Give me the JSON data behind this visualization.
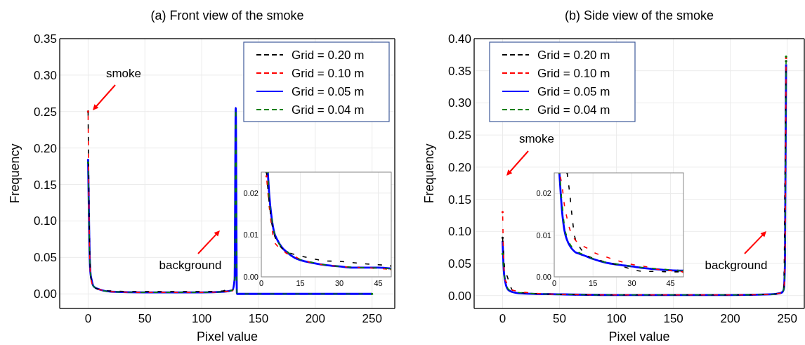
{
  "chart_data": [
    {
      "type": "line",
      "title": "(a) Front view of the smoke",
      "xlabel": "Pixel value",
      "ylabel": "Frequency",
      "xlim": [
        -25,
        270
      ],
      "ylim": [
        -0.02,
        0.35
      ],
      "xticks": [
        0,
        50,
        100,
        150,
        200,
        250
      ],
      "yticks": [
        {
          "value": 0,
          "label": "0.00"
        },
        {
          "value": 0.05,
          "label": "0.05"
        },
        {
          "value": 0.1,
          "label": "0.10"
        },
        {
          "value": 0.15,
          "label": "0.15"
        },
        {
          "value": 0.2,
          "label": "0.20"
        },
        {
          "value": 0.25,
          "label": "0.25"
        },
        {
          "value": 0.3,
          "label": "0.30"
        },
        {
          "value": 0.35,
          "label": "0.35"
        }
      ],
      "grid": true,
      "legend": "top right",
      "annotations": [
        "smoke",
        "background"
      ],
      "x": [
        0,
        1,
        2,
        3,
        5,
        10,
        20,
        50,
        100,
        120,
        127,
        129,
        130,
        131,
        250
      ],
      "series": [
        {
          "name": "Grid = 0.20 m",
          "color": "#000000",
          "line_style": "dashed",
          "values": [
            0.25,
            0.1,
            0.03,
            0.018,
            0.01,
            0.006,
            0.004,
            0.003,
            0.003,
            0.004,
            null,
            null,
            null,
            null,
            null
          ]
        },
        {
          "name": "Grid = 0.10 m",
          "color": "#ff0000",
          "line_style": "dashed",
          "values": [
            0.25,
            0.09,
            0.028,
            0.017,
            0.009,
            0.006,
            0.003,
            0.002,
            0.002,
            0.003,
            0.005,
            null,
            null,
            null,
            null
          ]
        },
        {
          "name": "Grid = 0.05 m",
          "color": "#0000ff",
          "line_style": "solid",
          "values": [
            0.185,
            0.08,
            0.03,
            0.02,
            0.01,
            0.006,
            0.003,
            0.002,
            0.002,
            0.003,
            0.005,
            0.02,
            0.255,
            0,
            0
          ]
        },
        {
          "name": "Grid = 0.04 m",
          "color": "#008000",
          "line_style": "dashed",
          "values": [
            0.18,
            0.08,
            0.03,
            0.019,
            0.01,
            0.006,
            0.003,
            0.002,
            0.002,
            0.003,
            0.005,
            0.02,
            0.255,
            0,
            0
          ]
        }
      ]
    },
    {
      "type": "line",
      "xlim": [
        0,
        50
      ],
      "ylim": [
        0,
        0.025
      ],
      "xticks": [
        0,
        15,
        30,
        45
      ],
      "yticks": [
        {
          "value": 0,
          "label": "0.00"
        },
        {
          "value": 0.01,
          "label": "0.01"
        },
        {
          "value": 0.02,
          "label": "0.02"
        }
      ],
      "grid": true,
      "series": [
        {
          "color": "#000000",
          "line_style": "dashed",
          "x": [
            2,
            3,
            4,
            5,
            6,
            8,
            10,
            13,
            15,
            20,
            25,
            30,
            35,
            40,
            45,
            50
          ],
          "values": [
            0.025,
            0.018,
            0.013,
            0.01,
            0.0085,
            0.0068,
            0.006,
            0.0053,
            0.005,
            0.0043,
            0.0038,
            0.0037,
            0.0034,
            0.0031,
            0.0029,
            0.0026
          ]
        },
        {
          "color": "#ff0000",
          "line_style": "dashed",
          "x": [
            2,
            3,
            4,
            5,
            6,
            8,
            10,
            13,
            15,
            20,
            25,
            30,
            35,
            40,
            45,
            50
          ],
          "values": [
            0.024,
            0.017,
            0.012,
            0.0085,
            0.0075,
            0.0065,
            0.0055,
            0.0048,
            0.0042,
            0.0033,
            0.0028,
            0.0025,
            0.0023,
            0.0022,
            0.002,
            0.0018
          ]
        },
        {
          "color": "#0000ff",
          "line_style": "solid",
          "x": [
            2.5,
            3,
            4,
            5,
            6,
            8,
            10,
            13,
            15,
            20,
            25,
            30,
            35,
            40,
            45,
            50
          ],
          "values": [
            0.025,
            0.02,
            0.014,
            0.0105,
            0.009,
            0.007,
            0.0058,
            0.0045,
            0.004,
            0.0033,
            0.0028,
            0.0025,
            0.0022,
            0.0022,
            0.0022,
            0.002
          ]
        },
        {
          "color": "#008000",
          "line_style": "dashed",
          "x": [
            2.5,
            3,
            4,
            5,
            6,
            8,
            10,
            13,
            15,
            20,
            25,
            30,
            35,
            40,
            45,
            50
          ],
          "values": [
            0.025,
            0.019,
            0.014,
            0.0105,
            0.0088,
            0.007,
            0.006,
            0.0047,
            0.0041,
            0.0034,
            0.0028,
            0.0025,
            0.0023,
            0.0022,
            0.0021,
            0.0019
          ]
        }
      ]
    },
    {
      "type": "line",
      "title": "(b) Side view of the smoke",
      "xlabel": "Pixel value",
      "ylabel": "Frequency",
      "xlim": [
        -25,
        265
      ],
      "ylim": [
        -0.02,
        0.4
      ],
      "xticks": [
        0,
        50,
        100,
        150,
        200,
        250
      ],
      "yticks": [
        {
          "value": 0,
          "label": "0.00"
        },
        {
          "value": 0.05,
          "label": "0.05"
        },
        {
          "value": 0.1,
          "label": "0.10"
        },
        {
          "value": 0.15,
          "label": "0.15"
        },
        {
          "value": 0.2,
          "label": "0.20"
        },
        {
          "value": 0.25,
          "label": "0.25"
        },
        {
          "value": 0.3,
          "label": "0.30"
        },
        {
          "value": 0.35,
          "label": "0.35"
        },
        {
          "value": 0.4,
          "label": "0.40"
        }
      ],
      "grid": true,
      "legend": "top left",
      "annotations": [
        "smoke",
        "background"
      ],
      "x": [
        0,
        1,
        2,
        3,
        5,
        8,
        10,
        20,
        50,
        100,
        150,
        200,
        235,
        244,
        246,
        247,
        248,
        249
      ],
      "series": [
        {
          "name": "Grid = 0.20 m",
          "color": "#000000",
          "line_style": "dashed",
          "values": [
            0.09,
            0.06,
            0.04,
            0.035,
            0.025,
            0.01,
            0.007,
            0.004,
            0.002,
            0.001,
            0.001,
            0.001,
            0.002,
            0.004,
            0.006,
            0.01,
            0.17,
            0.365
          ]
        },
        {
          "name": "Grid = 0.10 m",
          "color": "#ff0000",
          "line_style": "dashed",
          "values": [
            0.13,
            0.05,
            0.025,
            0.022,
            0.014,
            0.009,
            0.008,
            0.005,
            0.002,
            0.001,
            0.001,
            0.001,
            0.002,
            0.004,
            0.006,
            0.01,
            0.05,
            0.37
          ]
        },
        {
          "name": "Grid = 0.05 m",
          "color": "#0000ff",
          "line_style": "solid",
          "values": [
            0.085,
            0.04,
            0.025,
            0.016,
            0.009,
            0.006,
            0.005,
            0.003,
            0.002,
            0.001,
            0.001,
            0.001,
            0.002,
            0.004,
            0.006,
            0.01,
            0.05,
            0.36
          ]
        },
        {
          "name": "Grid = 0.04 m",
          "color": "#008000",
          "line_style": "dashed",
          "values": [
            0.065,
            0.04,
            0.025,
            0.018,
            0.01,
            0.007,
            0.006,
            0.004,
            0.002,
            0.001,
            0.001,
            0.001,
            0.002,
            0.004,
            0.006,
            0.01,
            0.05,
            0.372
          ]
        }
      ]
    },
    {
      "type": "line",
      "xlim": [
        0,
        50
      ],
      "ylim": [
        0,
        0.025
      ],
      "xticks": [
        0,
        15,
        30,
        45
      ],
      "yticks": [
        {
          "value": 0,
          "label": "0.00"
        },
        {
          "value": 0.01,
          "label": "0.01"
        },
        {
          "value": 0.02,
          "label": "0.02"
        }
      ],
      "grid": true,
      "series": [
        {
          "color": "#000000",
          "line_style": "dashed",
          "x": [
            5,
            6,
            7,
            8,
            10,
            13,
            15,
            20,
            25,
            28,
            30,
            35,
            40,
            45,
            50
          ],
          "values": [
            0.025,
            0.02,
            0.014,
            0.0095,
            0.007,
            0.005,
            0.0045,
            0.0035,
            0.0028,
            0.0022,
            0.0018,
            0.0013,
            0.0013,
            0.0012,
            0.0012
          ]
        },
        {
          "color": "#ff0000",
          "line_style": "dashed",
          "x": [
            2,
            3,
            4,
            5,
            6,
            8,
            10,
            13,
            15,
            20,
            25,
            30,
            35,
            40,
            45,
            50
          ],
          "values": [
            0.025,
            0.022,
            0.017,
            0.014,
            0.0115,
            0.009,
            0.0078,
            0.0068,
            0.006,
            0.0048,
            0.0038,
            0.003,
            0.0025,
            0.0018,
            0.0015,
            0.0012
          ]
        },
        {
          "color": "#0000ff",
          "line_style": "solid",
          "x": [
            2,
            3,
            4,
            5,
            6,
            8,
            10,
            13,
            15,
            20,
            25,
            30,
            35,
            40,
            45,
            50
          ],
          "values": [
            0.025,
            0.016,
            0.011,
            0.0088,
            0.0075,
            0.006,
            0.0055,
            0.0048,
            0.0043,
            0.0034,
            0.0029,
            0.0025,
            0.0021,
            0.0018,
            0.0016,
            0.0015
          ]
        },
        {
          "color": "#008000",
          "line_style": "dashed",
          "x": [
            2,
            3,
            4,
            5,
            6,
            8,
            10,
            13,
            15,
            20,
            25,
            30,
            35,
            40,
            45,
            50
          ],
          "values": [
            0.025,
            0.018,
            0.012,
            0.0095,
            0.008,
            0.0065,
            0.0057,
            0.005,
            0.0043,
            0.0035,
            0.003,
            0.0025,
            0.0022,
            0.0019,
            0.0017,
            0.0015
          ]
        }
      ]
    }
  ]
}
